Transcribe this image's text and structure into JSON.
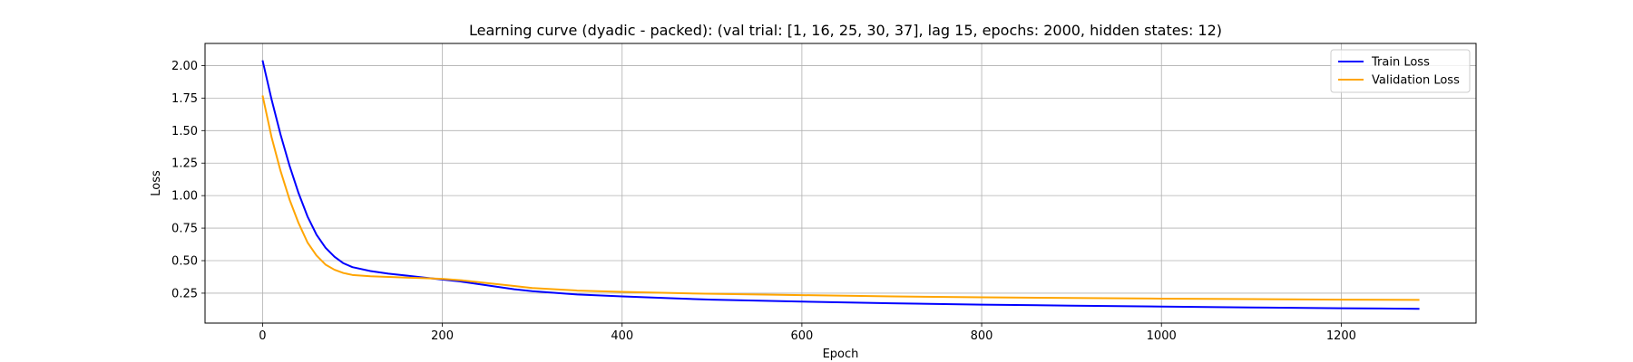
{
  "chart_data": {
    "type": "line",
    "title": "Learning curve (dyadic - packed): (val trial: [1, 16, 25, 30, 37], lag 15, epochs: 2000, hidden states: 12)",
    "xlabel": "Epoch",
    "ylabel": "Loss",
    "xlim": [
      -64,
      1350
    ],
    "ylim": [
      0.02,
      2.17
    ],
    "xticks": [
      0,
      200,
      400,
      600,
      800,
      1000,
      1200
    ],
    "xtick_labels": [
      "0",
      "200",
      "400",
      "600",
      "800",
      "1000",
      "1200"
    ],
    "yticks": [
      0.25,
      0.5,
      0.75,
      1.0,
      1.25,
      1.5,
      1.75,
      2.0
    ],
    "ytick_labels": [
      "0.25",
      "0.50",
      "0.75",
      "1.00",
      "1.25",
      "1.50",
      "1.75",
      "2.00"
    ],
    "grid": true,
    "legend_position": "top-right",
    "series": [
      {
        "name": "Train Loss",
        "color": "#0000ff",
        "x": [
          0,
          10,
          20,
          30,
          40,
          50,
          60,
          70,
          80,
          90,
          100,
          120,
          140,
          160,
          180,
          200,
          220,
          240,
          260,
          280,
          300,
          350,
          400,
          450,
          500,
          600,
          700,
          800,
          900,
          1000,
          1100,
          1200,
          1287
        ],
        "y": [
          2.04,
          1.74,
          1.47,
          1.23,
          1.02,
          0.84,
          0.7,
          0.6,
          0.53,
          0.48,
          0.45,
          0.42,
          0.4,
          0.385,
          0.37,
          0.355,
          0.34,
          0.32,
          0.3,
          0.28,
          0.265,
          0.24,
          0.225,
          0.212,
          0.2,
          0.185,
          0.172,
          0.162,
          0.154,
          0.147,
          0.14,
          0.134,
          0.13
        ]
      },
      {
        "name": "Validation Loss",
        "color": "#ffa500",
        "x": [
          0,
          10,
          20,
          30,
          40,
          50,
          60,
          70,
          80,
          90,
          100,
          120,
          140,
          160,
          180,
          200,
          220,
          240,
          260,
          280,
          300,
          350,
          400,
          450,
          500,
          600,
          700,
          800,
          900,
          1000,
          1100,
          1200,
          1287
        ],
        "y": [
          1.77,
          1.45,
          1.19,
          0.97,
          0.79,
          0.64,
          0.54,
          0.47,
          0.43,
          0.405,
          0.39,
          0.38,
          0.375,
          0.37,
          0.365,
          0.36,
          0.35,
          0.335,
          0.32,
          0.305,
          0.29,
          0.27,
          0.26,
          0.252,
          0.245,
          0.235,
          0.225,
          0.218,
          0.213,
          0.208,
          0.204,
          0.2,
          0.198
        ]
      }
    ]
  }
}
